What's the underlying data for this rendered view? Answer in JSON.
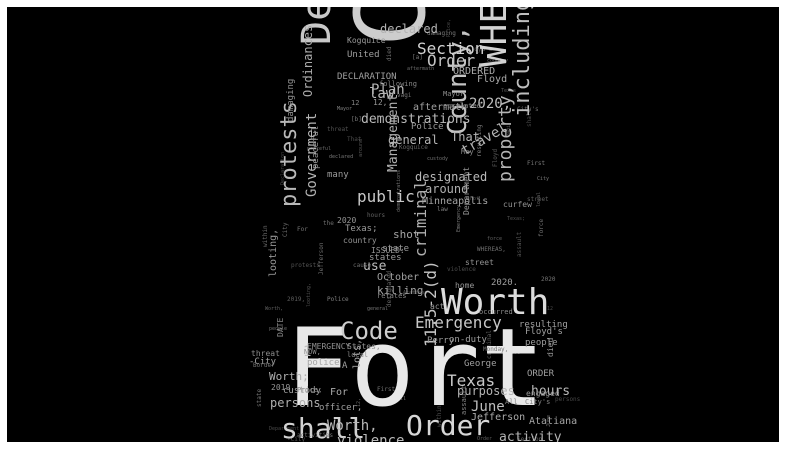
{
  "background_color": "#000000",
  "frame_color": "#ffffff",
  "words": [
    "Fort",
    "City",
    "Worth",
    "Declaration",
    "WHEREAS,",
    "Order",
    "shall",
    "Code",
    "County,",
    "including",
    "protests",
    "Emergency",
    "Section",
    "Texas",
    "public",
    "property,",
    "Order,",
    "Worth,",
    "violence",
    "June",
    "hours",
    "purposes",
    "11.5-2(d)",
    "activity",
    "Jefferson",
    "Atatiana",
    "persons",
    "demonstrations",
    "Government",
    "Management",
    "Ordinances",
    "declared",
    "designated",
    "use",
    "law",
    "Plan",
    "2020,",
    "travel",
    "That",
    "general",
    "criminal",
    "shot",
    "killing",
    "October",
    "Minneapolis",
    "around",
    "Police",
    "aftermath",
    "Floyd",
    "ORDERED",
    "DECLARATION",
    "United",
    "Kogquice",
    "looting,",
    "damaging",
    "peaceful",
    "Worth;",
    "police",
    "officer,",
    "custody",
    "2019,",
    "Price,",
    "For",
    "lots,",
    "George",
    "ORDER",
    "resulting",
    "people",
    "Floyd's",
    "on-duty",
    "Perry",
    "2020.",
    "states",
    "Texas;",
    "state",
    "country",
    "ISSUED:",
    "act",
    "relates",
    "home",
    "street",
    "Department",
    "died",
    "engaged",
    "curfew",
    "EMERGENCY",
    "States,",
    "local",
    "-City",
    "Mayor",
    "occurred",
    "many",
    "escalated",
    "following",
    "2020",
    "12,",
    "threat",
    "DATE",
    "NOW,",
    "1",
    "A",
    "12",
    "First",
    "vagi",
    "[b]",
    "[a]",
    "May",
    "Border",
    "assault",
    "All",
    "City's",
    "Monday,",
    "activities",
    "the",
    "cause",
    "force",
    "within",
    "City"
  ]
}
